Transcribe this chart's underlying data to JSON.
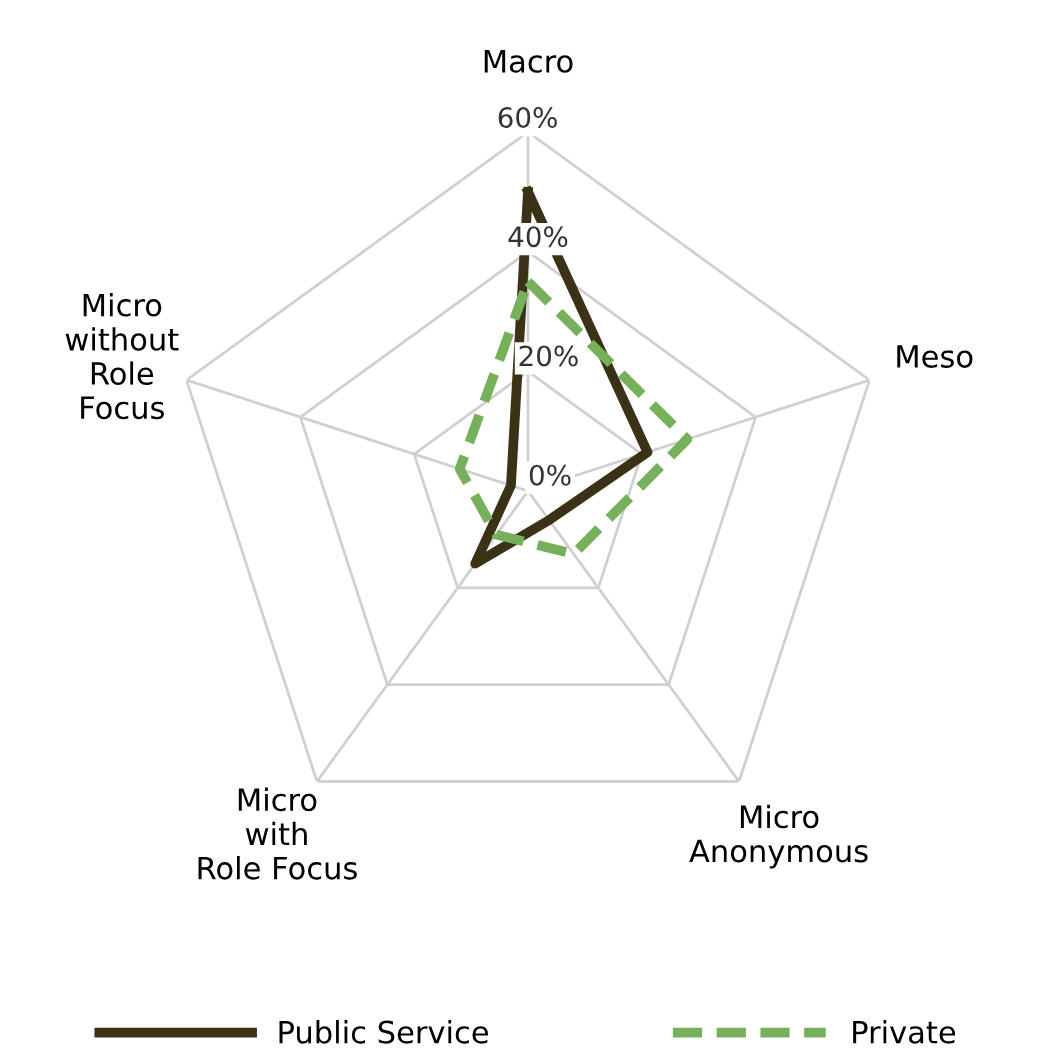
{
  "chart_data": {
    "type": "radar",
    "categories": [
      "Macro",
      "Meso",
      "Micro\nAnonymous",
      "Micro\nwith\nRole Focus",
      "Micro\nwithout\nRole\nFocus"
    ],
    "series": [
      {
        "name": "Public Service",
        "color": "#3b3117",
        "line_style": "solid",
        "values": [
          50,
          21,
          6,
          15,
          3
        ]
      },
      {
        "name": "Private",
        "color": "#77b05a",
        "line_style": "dashed",
        "values": [
          35,
          28,
          13,
          9,
          12
        ]
      }
    ],
    "ylim": [
      0,
      60
    ],
    "yticks": [
      {
        "value": 0,
        "label": "0%"
      },
      {
        "value": 20,
        "label": "20%"
      },
      {
        "value": 40,
        "label": "40%"
      },
      {
        "value": 60,
        "label": "60%"
      }
    ],
    "grid": true,
    "legend": "bottom",
    "marker": "none"
  }
}
